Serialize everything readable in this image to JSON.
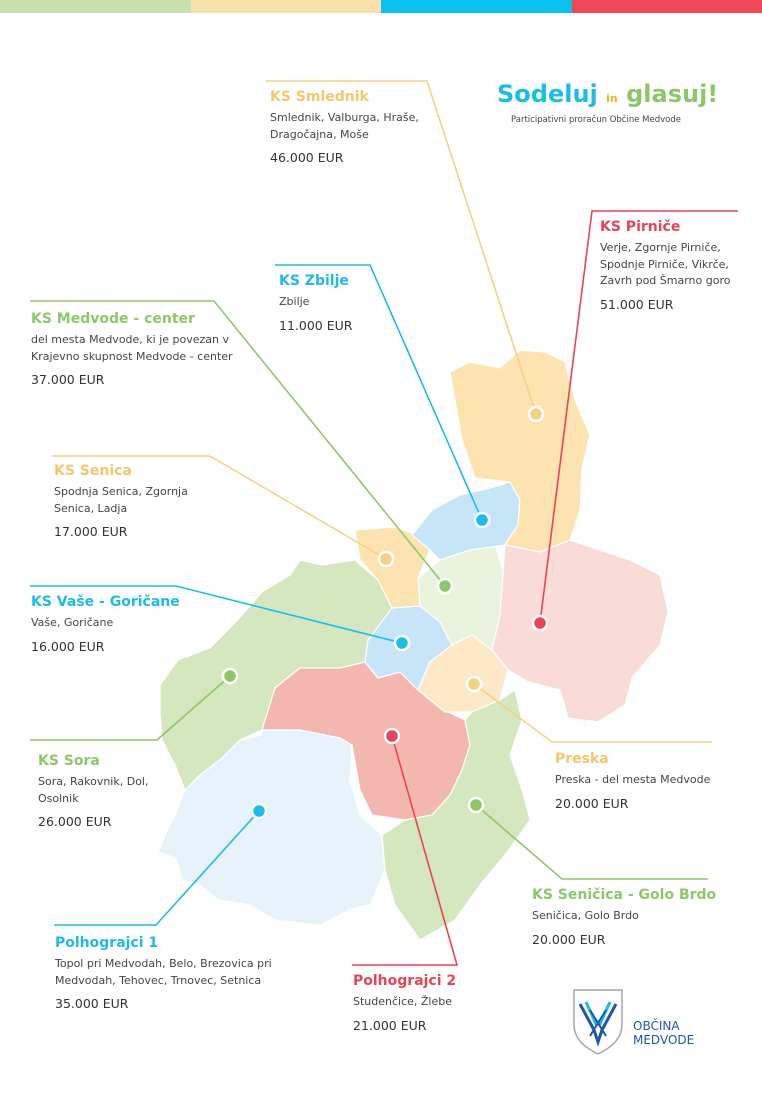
{
  "colors": {
    "green": "#8dc76a",
    "yellow": "#f5d183",
    "blue": "#1bbde8",
    "red": "#e94358",
    "blue_dark": "#1f57a4"
  },
  "top_bar": [
    "#c6e1ad",
    "#f8e1a8",
    "#0cc0ef",
    "#f04859"
  ],
  "campaign": {
    "title_part1": "Sodeluj",
    "title_in": "in",
    "title_part2": "glasuj!",
    "subtitle": "Participativni proračun Občine Medvode"
  },
  "municipality": {
    "line1": "OBČINA",
    "line2": "MEDVODE",
    "icon": "coat-of-arms-icon"
  },
  "areas": [
    {
      "id": "smlednik",
      "name": "KS Smlednik",
      "places": "Smlednik, Valburga, Hraše, Dragočajna, Moše",
      "amount": "46.000 EUR",
      "color": "yellow"
    },
    {
      "id": "pirnice",
      "name": "KS Pirniče",
      "places": "Verje, Zgornje Pirniče, Spodnje Pirniče, Vikrče, Zavrh pod Šmarno goro",
      "amount": "51.000 EUR",
      "color": "red"
    },
    {
      "id": "zbilje",
      "name": "KS Zbilje",
      "places": "Zbilje",
      "amount": "11.000 EUR",
      "color": "blue"
    },
    {
      "id": "medvode-center",
      "name": "KS Medvode - center",
      "places": "del mesta Medvode, ki je povezan v Krajevno skupnost Medvode - center",
      "amount": "37.000 EUR",
      "color": "green"
    },
    {
      "id": "senica",
      "name": "KS Senica",
      "places": "Spodnja Senica, Zgornja Senica, Ladja",
      "amount": "17.000 EUR",
      "color": "yellow"
    },
    {
      "id": "vase-goricane",
      "name": "KS Vaše - Goričane",
      "places": "Vaše, Goričane",
      "amount": "16.000 EUR",
      "color": "blue"
    },
    {
      "id": "sora",
      "name": "KS Sora",
      "places": "Sora, Rakovnik, Dol, Osolnik",
      "amount": "26.000 EUR",
      "color": "green"
    },
    {
      "id": "preska",
      "name": "Preska",
      "places": "Preska - del mesta Medvode",
      "amount": "20.000 EUR",
      "color": "yellow"
    },
    {
      "id": "senicica-golo-brdo",
      "name": "KS Seničica - Golo Brdo",
      "places": "Seničica, Golo Brdo",
      "amount": "20.000 EUR",
      "color": "green"
    },
    {
      "id": "polhograjci-1",
      "name": "Polhograjci 1",
      "places": "Topol pri Medvodah, Belo, Brezovica pri Medvodah, Tehovec, Trnovec, Setnica",
      "amount": "35.000 EUR",
      "color": "blue"
    },
    {
      "id": "polhograjci-2",
      "name": "Polhograjci 2",
      "places": "Studenčice, Žlebe",
      "amount": "21.000 EUR",
      "color": "red"
    }
  ]
}
